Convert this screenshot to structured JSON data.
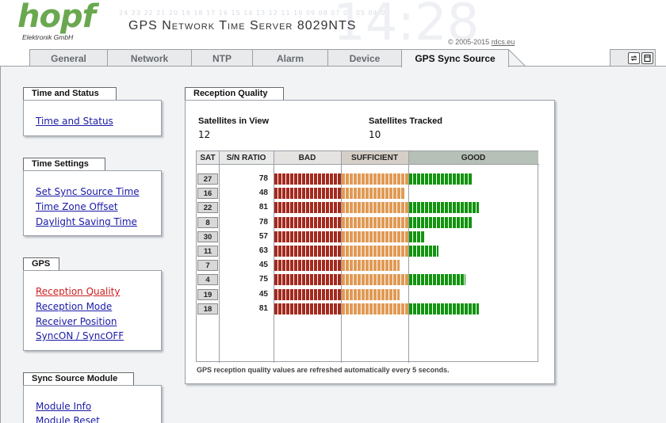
{
  "header": {
    "logo_word": "hopf",
    "logo_sub": "Elektronik  GmbH",
    "title": "GPS Network Time Server 8029NTS",
    "copyright_text": "© 2005-2015",
    "copyright_link": "rdcs.eu",
    "deco_numbers": "24 23 22 21 20 19 18 17 16 15 14 13 12 11 10 09 08 07 06 05 04 01"
  },
  "tabs": [
    {
      "label": "General"
    },
    {
      "label": "Network"
    },
    {
      "label": "NTP"
    },
    {
      "label": "Alarm"
    },
    {
      "label": "Device"
    },
    {
      "label": "GPS Sync Source",
      "active": true
    }
  ],
  "toolbar": {
    "refresh_icon": "refresh-icon",
    "logout_icon": "logout-icon"
  },
  "sidebar": {
    "time_status": {
      "title": "Time and Status",
      "links": [
        "Time and Status"
      ]
    },
    "time_settings": {
      "title": "Time Settings",
      "links": [
        "Set Sync Source Time",
        "Time Zone Offset",
        "Daylight Saving Time"
      ]
    },
    "gps": {
      "title": "GPS",
      "links": [
        "Reception Quality",
        "Reception Mode",
        "Receiver Position",
        "SyncON / SyncOFF"
      ],
      "active_index": 0
    },
    "sync_module": {
      "title": "Sync Source Module",
      "links": [
        "Module Info",
        "Module Reset"
      ]
    }
  },
  "reception": {
    "title": "Reception Quality",
    "sats_in_view_label": "Satellites in View",
    "sats_in_view": "12",
    "sats_tracked_label": "Satellites Tracked",
    "sats_tracked": "10",
    "table_headers": {
      "sat": "SAT",
      "snr": "S/N RATIO",
      "bad": "BAD",
      "sufficient": "SUFFICIENT",
      "good": "GOOD"
    },
    "rows": [
      {
        "sat": "27",
        "snr": "78"
      },
      {
        "sat": "16",
        "snr": "48"
      },
      {
        "sat": "22",
        "snr": "81"
      },
      {
        "sat": "8",
        "snr": "78"
      },
      {
        "sat": "30",
        "snr": "57"
      },
      {
        "sat": "11",
        "snr": "63"
      },
      {
        "sat": "7",
        "snr": "45"
      },
      {
        "sat": "4",
        "snr": "75"
      },
      {
        "sat": "19",
        "snr": "45"
      },
      {
        "sat": "18",
        "snr": "81"
      }
    ],
    "footnote": "GPS reception quality values are refreshed automatically every 5 seconds."
  },
  "colors": {
    "bad": "#a32a1f",
    "sufficient": "#e09a55",
    "good": "#12940f",
    "link": "#1a1aa6",
    "active_link": "#cc2020"
  }
}
